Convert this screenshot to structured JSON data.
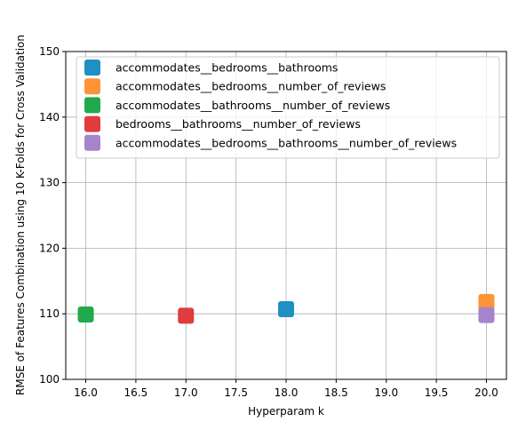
{
  "chart_data": {
    "type": "scatter",
    "title": "",
    "xlabel": "Hyperparam k",
    "ylabel": "RMSE of Features Combination using 10 K-Folds for Cross Validation",
    "xlim": [
      15.8,
      20.2
    ],
    "ylim": [
      100,
      150
    ],
    "x_ticks": [
      "16.0",
      "16.5",
      "17.0",
      "17.5",
      "18.0",
      "18.5",
      "19.0",
      "19.5",
      "20.0"
    ],
    "y_ticks": [
      "100",
      "110",
      "120",
      "130",
      "140",
      "150"
    ],
    "grid": true,
    "legend_position": "top-right",
    "series": [
      {
        "name": "accommodates__bedrooms__bathrooms",
        "color": "#1f8fc4",
        "points": [
          {
            "x": 18,
            "y": 110.7
          }
        ]
      },
      {
        "name": "accommodates__bedrooms__number_of_reviews",
        "color": "#fe9437",
        "points": [
          {
            "x": 20,
            "y": 111.8
          }
        ]
      },
      {
        "name": "accommodates__bathrooms__number_of_reviews",
        "color": "#21aa4c",
        "points": [
          {
            "x": 16,
            "y": 109.9
          }
        ]
      },
      {
        "name": "bedrooms__bathrooms__number_of_reviews",
        "color": "#e03c3d",
        "points": [
          {
            "x": 17,
            "y": 109.7
          }
        ]
      },
      {
        "name": "accommodates__bedrooms__bathrooms__number_of_reviews",
        "color": "#a584cb",
        "points": [
          {
            "x": 20,
            "y": 109.8
          }
        ]
      }
    ]
  }
}
